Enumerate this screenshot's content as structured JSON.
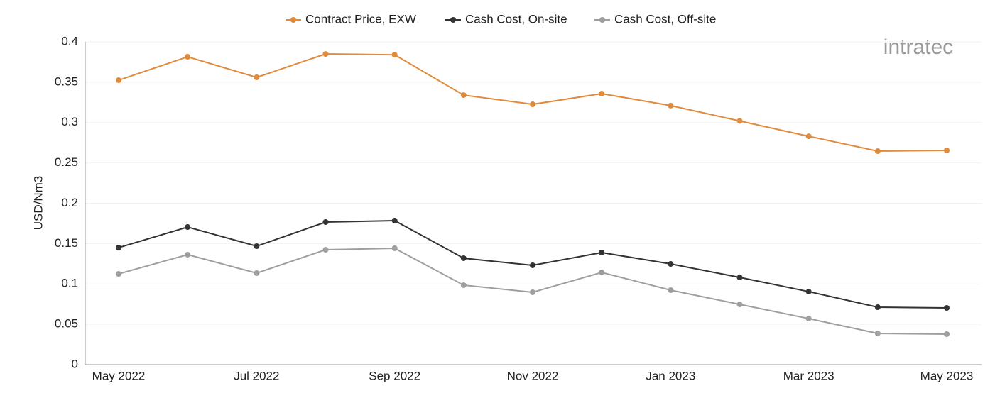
{
  "chart_data": {
    "type": "line",
    "y_label": "USD/Nm3",
    "logo": "intratec",
    "categories": [
      "May 2022",
      null,
      "Jul 2022",
      null,
      "Sep 2022",
      null,
      "Nov 2022",
      null,
      "Jan 2023",
      null,
      "Mar 2023",
      null,
      "May 2023"
    ],
    "series": [
      {
        "name": "Contract Price, EXW",
        "color": "#e08a3c",
        "values": [
          0.3525,
          0.3815,
          0.356,
          0.385,
          0.384,
          0.334,
          0.3226,
          0.3358,
          0.321,
          0.302,
          0.283,
          0.2646,
          0.2655
        ]
      },
      {
        "name": "Cash Cost, On-site",
        "color": "#333333",
        "values": [
          0.145,
          0.1705,
          0.1468,
          0.1767,
          0.1785,
          0.1319,
          0.1231,
          0.1389,
          0.1248,
          0.1081,
          0.0905,
          0.0712,
          0.0703
        ]
      },
      {
        "name": "Cash Cost, Off-site",
        "color": "#9e9e9e",
        "values": [
          0.1125,
          0.1363,
          0.1134,
          0.1424,
          0.1442,
          0.0985,
          0.0897,
          0.1143,
          0.0923,
          0.0747,
          0.0571,
          0.0387,
          0.0378
        ]
      }
    ],
    "ylim": [
      0,
      0.4
    ],
    "yticks": [
      0,
      0.05,
      0.1,
      0.15,
      0.2,
      0.25,
      0.3,
      0.35,
      0.4
    ],
    "grid": true,
    "legend": "top"
  }
}
